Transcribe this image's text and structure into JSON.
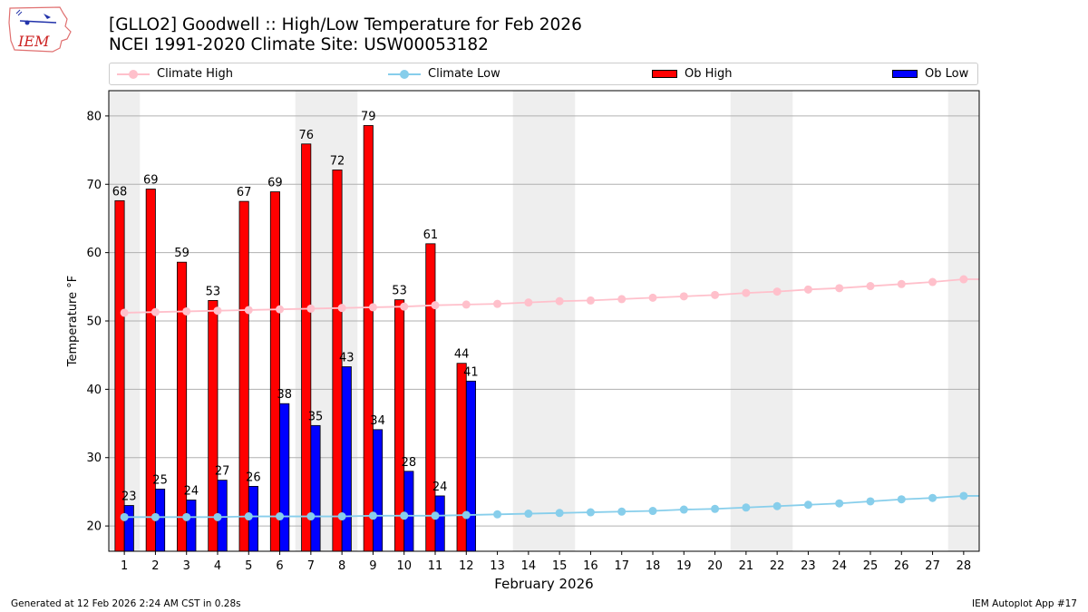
{
  "logo": {
    "text": "IEM"
  },
  "title": {
    "line1": "[GLLO2] Goodwell :: High/Low Temperature for Feb 2026",
    "line2": "NCEI 1991-2020 Climate Site: USW00053182"
  },
  "legend": {
    "climate_high": "Climate High",
    "climate_low": "Climate Low",
    "ob_high": "Ob High",
    "ob_low": "Ob Low"
  },
  "colors": {
    "climate_high": "#ffc0cb",
    "climate_low": "#87ceeb",
    "ob_high": "#ff0000",
    "ob_low": "#0000ff",
    "weekend_shade": "#eeeeee",
    "grid": "#b0b0b0"
  },
  "footer": {
    "left": "Generated at 12 Feb 2026 2:24 AM CST in 0.28s",
    "right": "IEM Autoplot App #17"
  },
  "chart_data": {
    "type": "bar",
    "xlabel": "February 2026",
    "ylabel": "Temperature °F",
    "ylim": [
      16.3,
      83.7
    ],
    "yticks": [
      20,
      30,
      40,
      50,
      60,
      70,
      80
    ],
    "grid": true,
    "legend_position": "top",
    "days": [
      "1",
      "2",
      "3",
      "4",
      "5",
      "6",
      "7",
      "8",
      "9",
      "10",
      "11",
      "12",
      "13",
      "14",
      "15",
      "16",
      "17",
      "18",
      "19",
      "20",
      "21",
      "22",
      "23",
      "24",
      "25",
      "26",
      "27",
      "28"
    ],
    "shaded_days": [
      1,
      7,
      8,
      14,
      15,
      21,
      22,
      28
    ],
    "ob_high": {
      "name": "Ob High",
      "values": [
        67.6,
        69.3,
        58.6,
        53.0,
        67.5,
        68.9,
        75.9,
        72.1,
        78.6,
        53.1,
        61.3,
        43.8
      ],
      "labels": [
        "68",
        "69",
        "59",
        "53",
        "67",
        "69",
        "76",
        "72",
        "79",
        "53",
        "61",
        "44"
      ]
    },
    "ob_low": {
      "name": "Ob Low",
      "values": [
        23.0,
        25.4,
        23.8,
        26.7,
        25.8,
        37.9,
        34.7,
        43.3,
        34.1,
        28.0,
        24.4,
        41.2
      ],
      "labels": [
        "23",
        "25",
        "24",
        "27",
        "26",
        "38",
        "35",
        "43",
        "34",
        "28",
        "24",
        "41"
      ]
    },
    "climate_high": {
      "name": "Climate High",
      "values": [
        51.2,
        51.3,
        51.4,
        51.5,
        51.6,
        51.7,
        51.8,
        51.9,
        52.0,
        52.1,
        52.3,
        52.4,
        52.5,
        52.7,
        52.9,
        53.0,
        53.2,
        53.4,
        53.6,
        53.8,
        54.1,
        54.3,
        54.6,
        54.8,
        55.1,
        55.4,
        55.7,
        56.1
      ]
    },
    "climate_low": {
      "name": "Climate Low",
      "values": [
        21.3,
        21.3,
        21.3,
        21.3,
        21.4,
        21.4,
        21.4,
        21.4,
        21.5,
        21.5,
        21.5,
        21.6,
        21.7,
        21.8,
        21.9,
        22.0,
        22.1,
        22.2,
        22.4,
        22.5,
        22.7,
        22.9,
        23.1,
        23.3,
        23.6,
        23.9,
        24.1,
        24.4
      ]
    }
  }
}
